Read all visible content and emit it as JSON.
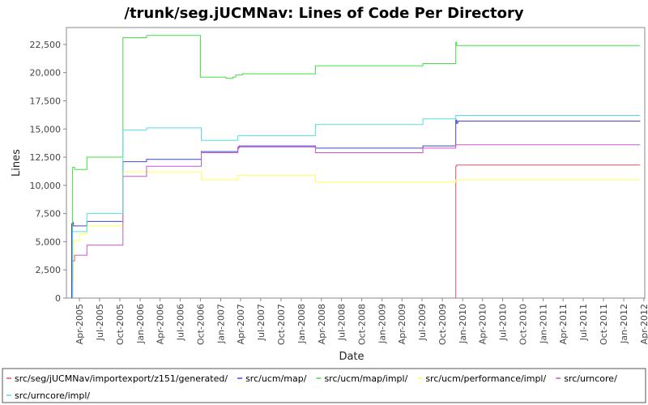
{
  "chart_data": {
    "type": "line",
    "title": "/trunk/seg.jUCMNav: Lines of Code Per Directory",
    "xlabel": "Date",
    "ylabel": "Lines",
    "ylim": [
      0,
      24000
    ],
    "xlim": [
      "2005-02-01",
      "2012-04-05"
    ],
    "y_ticks": [
      0,
      2500,
      5000,
      7500,
      10000,
      12500,
      15000,
      17500,
      20000,
      22500
    ],
    "y_tick_labels": [
      "0",
      "2,500",
      "5,000",
      "7,500",
      "10,000",
      "12,500",
      "15,000",
      "17,500",
      "20,000",
      "22,500"
    ],
    "x_ticks": [
      "2005-04-01",
      "2005-07-01",
      "2005-10-01",
      "2006-01-01",
      "2006-04-01",
      "2006-07-01",
      "2006-10-01",
      "2007-01-01",
      "2007-04-01",
      "2007-07-01",
      "2007-10-01",
      "2008-01-01",
      "2008-04-01",
      "2008-07-01",
      "2008-10-01",
      "2009-01-01",
      "2009-04-01",
      "2009-07-01",
      "2009-10-01",
      "2010-01-01",
      "2010-04-01",
      "2010-07-01",
      "2010-10-01",
      "2011-01-01",
      "2011-04-01",
      "2011-07-01",
      "2011-10-01",
      "2012-01-01",
      "2012-04-01"
    ],
    "x_tick_labels": [
      "Apr-2005",
      "Jul-2005",
      "Oct-2005",
      "Jan-2006",
      "Apr-2006",
      "Jul-2006",
      "Oct-2006",
      "Jan-2007",
      "Apr-2007",
      "Jul-2007",
      "Oct-2007",
      "Jan-2008",
      "Apr-2008",
      "Jul-2008",
      "Oct-2008",
      "Jan-2009",
      "Apr-2009",
      "Jul-2009",
      "Oct-2009",
      "Jan-2010",
      "Apr-2010",
      "Jul-2010",
      "Oct-2010",
      "Jan-2011",
      "Apr-2011",
      "Jul-2011",
      "Oct-2011",
      "Jan-2012",
      "Apr-2012"
    ],
    "grid": false,
    "legend_position": "bottom",
    "series": [
      {
        "name": "src/seg/jUCMNav/importexport/z151/generated/",
        "color": "#e8535a",
        "points": [
          [
            "2009-12-01",
            0
          ],
          [
            "2009-12-01",
            11700
          ],
          [
            "2009-12-05",
            11800
          ],
          [
            "2012-03-15",
            11800
          ]
        ]
      },
      {
        "name": "src/ucm/map/",
        "color": "#4444cc",
        "points": [
          [
            "2005-02-25",
            0
          ],
          [
            "2005-02-25",
            6600
          ],
          [
            "2005-03-01",
            6700
          ],
          [
            "2005-03-05",
            6400
          ],
          [
            "2005-05-01",
            6400
          ],
          [
            "2005-05-05",
            6800
          ],
          [
            "2005-10-10",
            6800
          ],
          [
            "2005-10-15",
            12100
          ],
          [
            "2006-01-25",
            12100
          ],
          [
            "2006-01-30",
            12300
          ],
          [
            "2006-10-01",
            12300
          ],
          [
            "2006-10-05",
            13000
          ],
          [
            "2007-03-15",
            13000
          ],
          [
            "2007-03-20",
            13300
          ],
          [
            "2007-03-25",
            13500
          ],
          [
            "2008-03-01",
            13500
          ],
          [
            "2008-03-05",
            13300
          ],
          [
            "2009-07-01",
            13300
          ],
          [
            "2009-07-05",
            13500
          ],
          [
            "2009-11-25",
            13500
          ],
          [
            "2009-12-01",
            15800
          ],
          [
            "2009-12-05",
            15500
          ],
          [
            "2009-12-10",
            15700
          ],
          [
            "2012-03-15",
            15700
          ]
        ]
      },
      {
        "name": "src/ucm/map/impl/",
        "color": "#44dd44",
        "points": [
          [
            "2005-03-01",
            0
          ],
          [
            "2005-03-01",
            11600
          ],
          [
            "2005-03-10",
            11400
          ],
          [
            "2005-05-01",
            11400
          ],
          [
            "2005-05-05",
            12500
          ],
          [
            "2005-10-10",
            12500
          ],
          [
            "2005-10-15",
            23100
          ],
          [
            "2006-01-25",
            23100
          ],
          [
            "2006-01-30",
            23300
          ],
          [
            "2006-09-25",
            23300
          ],
          [
            "2006-10-01",
            19600
          ],
          [
            "2007-01-01",
            19600
          ],
          [
            "2007-01-25",
            19500
          ],
          [
            "2007-02-25",
            19600
          ],
          [
            "2007-03-10",
            19800
          ],
          [
            "2007-04-10",
            19900
          ],
          [
            "2008-03-01",
            19900
          ],
          [
            "2008-03-05",
            20600
          ],
          [
            "2009-07-01",
            20600
          ],
          [
            "2009-07-05",
            20800
          ],
          [
            "2009-11-25",
            20800
          ],
          [
            "2009-12-01",
            22700
          ],
          [
            "2009-12-05",
            22400
          ],
          [
            "2012-03-15",
            22400
          ]
        ]
      },
      {
        "name": "src/ucm/performance/impl/",
        "color": "#ffff55",
        "points": [
          [
            "2005-03-01",
            0
          ],
          [
            "2005-03-01",
            1500
          ],
          [
            "2005-03-05",
            5100
          ],
          [
            "2005-04-01",
            5700
          ],
          [
            "2005-05-01",
            5700
          ],
          [
            "2005-05-05",
            6400
          ],
          [
            "2005-10-10",
            6400
          ],
          [
            "2005-10-15",
            11200
          ],
          [
            "2006-10-01",
            11200
          ],
          [
            "2006-10-05",
            10500
          ],
          [
            "2007-03-15",
            10500
          ],
          [
            "2007-03-20",
            10900
          ],
          [
            "2008-03-01",
            10900
          ],
          [
            "2008-03-05",
            10300
          ],
          [
            "2009-11-25",
            10300
          ],
          [
            "2009-12-01",
            10500
          ],
          [
            "2012-03-15",
            10500
          ]
        ]
      },
      {
        "name": "src/urncore/",
        "color": "#cc55cc",
        "points": [
          [
            "2005-03-01",
            0
          ],
          [
            "2005-03-01",
            3300
          ],
          [
            "2005-03-10",
            3800
          ],
          [
            "2005-05-01",
            3800
          ],
          [
            "2005-05-05",
            4700
          ],
          [
            "2005-10-10",
            4700
          ],
          [
            "2005-10-15",
            10800
          ],
          [
            "2006-01-25",
            10800
          ],
          [
            "2006-01-30",
            11700
          ],
          [
            "2006-10-01",
            11700
          ],
          [
            "2006-10-05",
            12900
          ],
          [
            "2007-03-15",
            12900
          ],
          [
            "2007-03-20",
            13400
          ],
          [
            "2008-03-01",
            13400
          ],
          [
            "2008-03-05",
            12900
          ],
          [
            "2009-07-01",
            12900
          ],
          [
            "2009-07-05",
            13300
          ],
          [
            "2009-11-25",
            13300
          ],
          [
            "2009-12-01",
            13600
          ],
          [
            "2012-03-15",
            13600
          ]
        ]
      },
      {
        "name": "src/urncore/impl/",
        "color": "#55dddd",
        "points": [
          [
            "2005-03-01",
            0
          ],
          [
            "2005-03-01",
            5900
          ],
          [
            "2005-05-01",
            5900
          ],
          [
            "2005-05-05",
            7500
          ],
          [
            "2005-10-10",
            7500
          ],
          [
            "2005-10-15",
            14900
          ],
          [
            "2006-01-25",
            14900
          ],
          [
            "2006-01-30",
            15100
          ],
          [
            "2006-10-01",
            15100
          ],
          [
            "2006-10-05",
            14000
          ],
          [
            "2007-03-15",
            14000
          ],
          [
            "2007-03-20",
            14400
          ],
          [
            "2008-03-01",
            14400
          ],
          [
            "2008-03-05",
            15400
          ],
          [
            "2009-07-01",
            15400
          ],
          [
            "2009-07-05",
            15900
          ],
          [
            "2009-11-25",
            15900
          ],
          [
            "2009-12-01",
            16200
          ],
          [
            "2012-03-15",
            16200
          ]
        ]
      }
    ]
  }
}
